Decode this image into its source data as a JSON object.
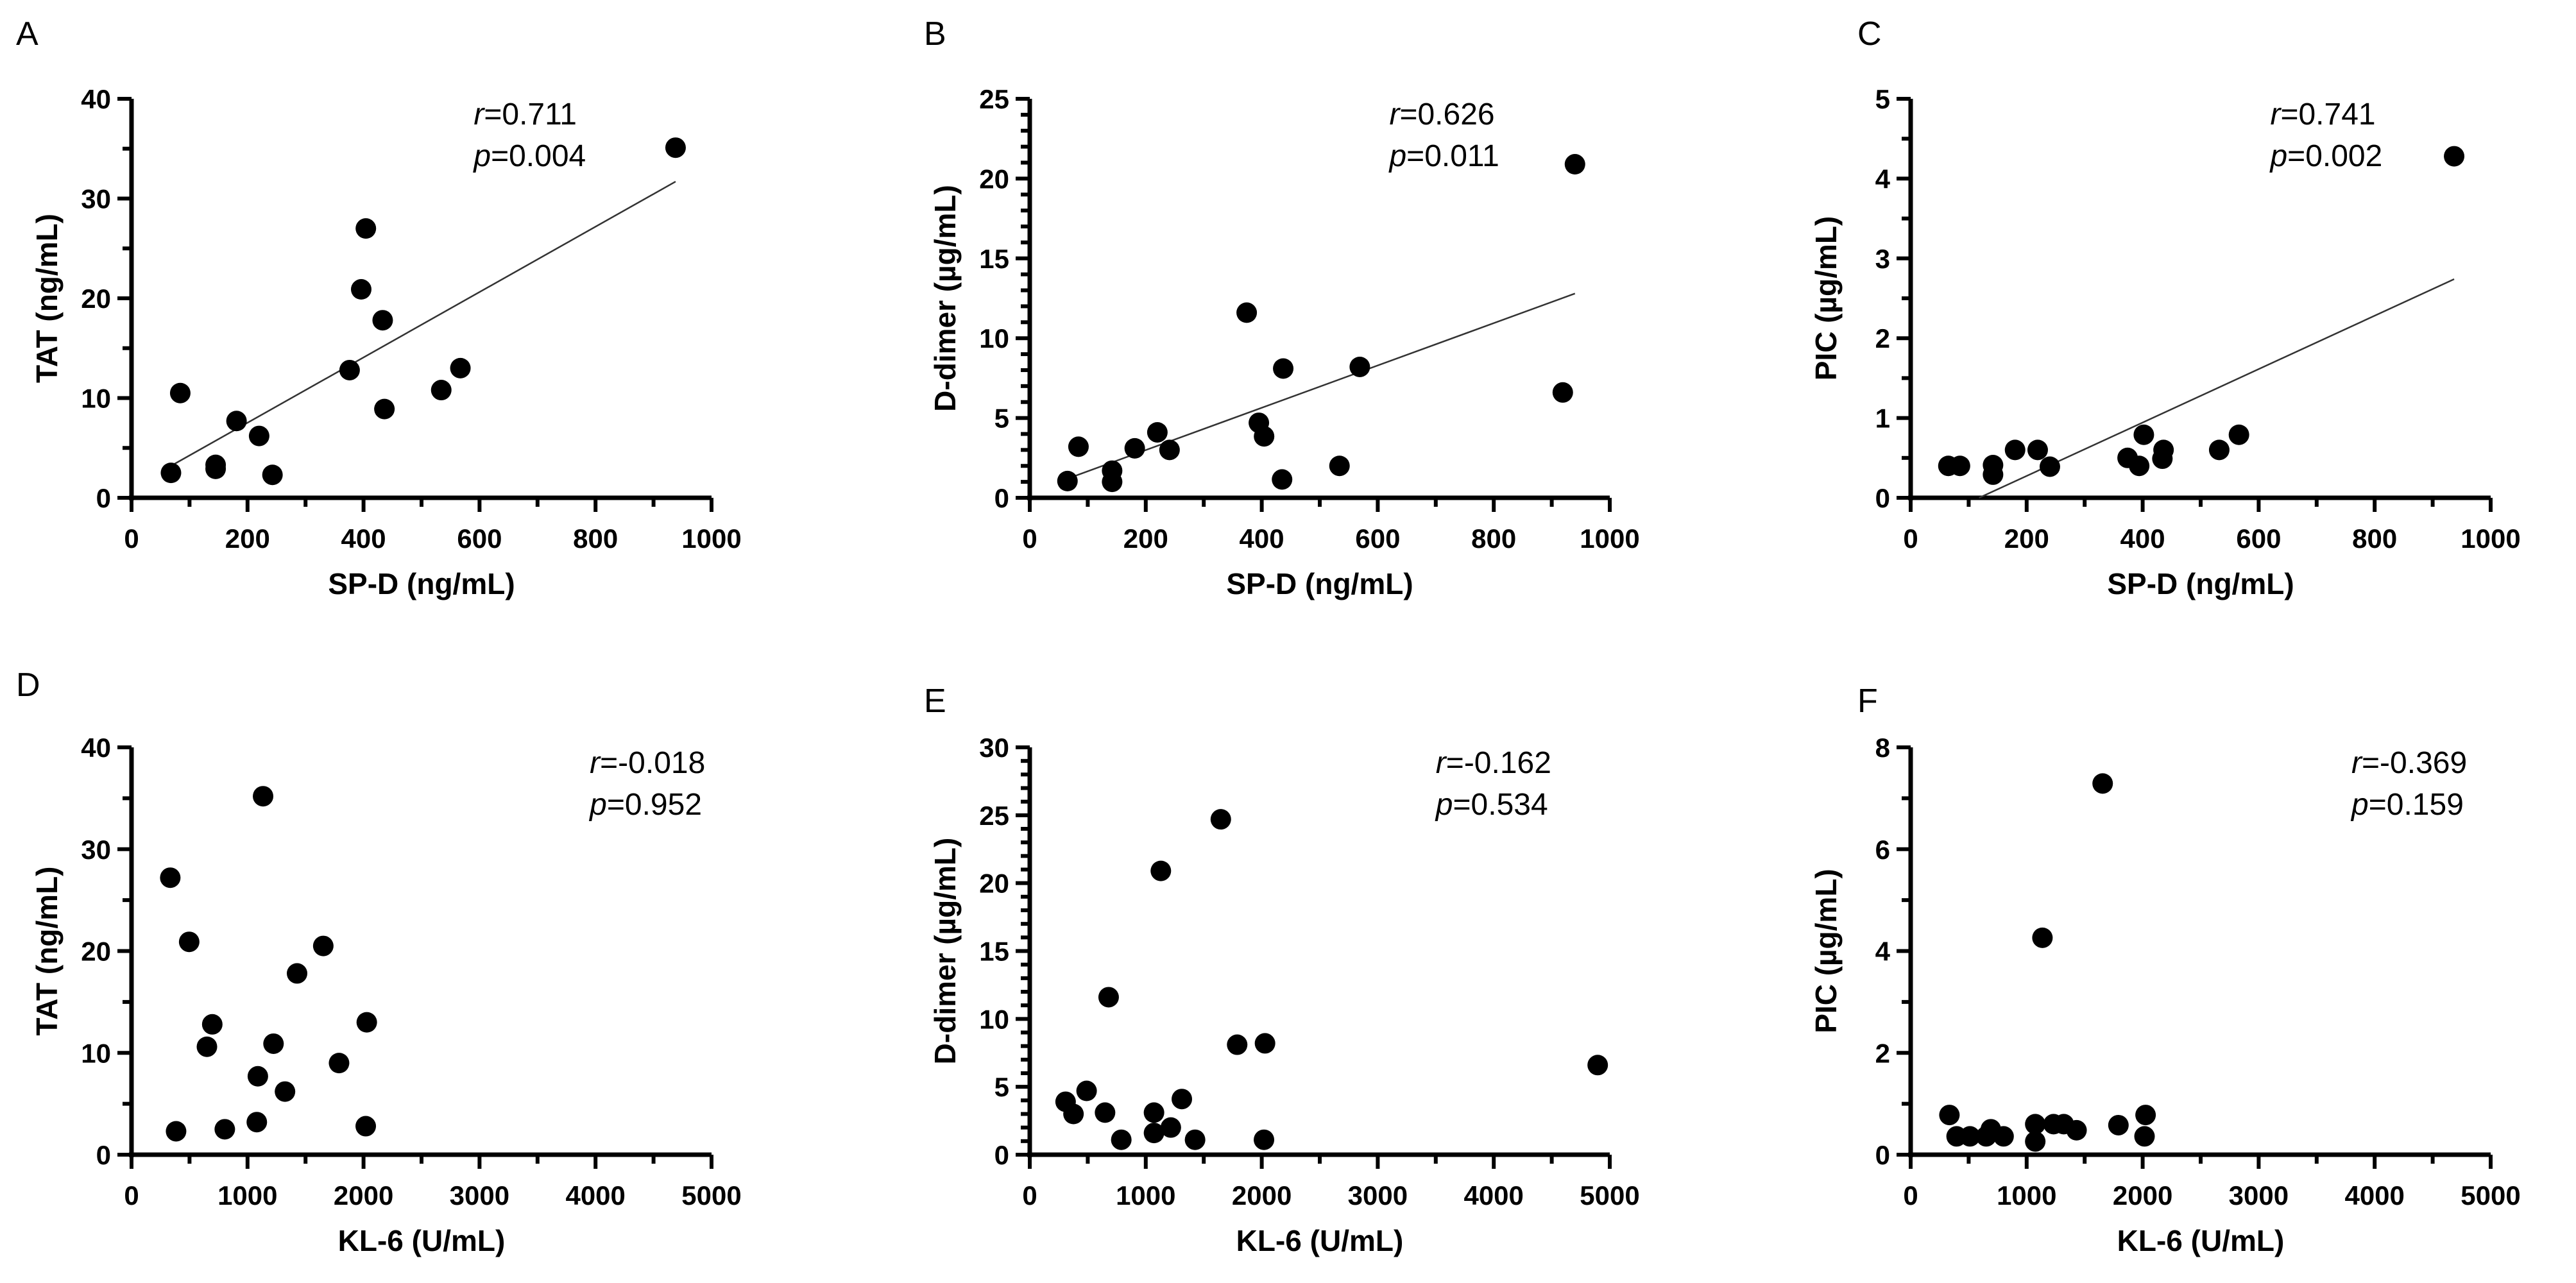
{
  "chart_data": [
    {
      "panel": "A",
      "type": "scatter",
      "xlabel": "SP-D (ng/mL)",
      "ylabel": "TAT (ng/mL)",
      "xlim": [
        0,
        1000
      ],
      "ylim": [
        0,
        40
      ],
      "xticks": [
        0,
        200,
        400,
        600,
        800,
        1000
      ],
      "yticks": [
        0,
        10,
        20,
        30,
        40
      ],
      "annotation": {
        "r_label": "r",
        "r_value": "=0.711",
        "p_label": "p",
        "p_value": "=0.004"
      },
      "points": [
        [
          68,
          2.5
        ],
        [
          84,
          10.5
        ],
        [
          145,
          3.3
        ],
        [
          145,
          2.9
        ],
        [
          181,
          7.7
        ],
        [
          220,
          6.2
        ],
        [
          243,
          2.3
        ],
        [
          376,
          12.8
        ],
        [
          396,
          20.9
        ],
        [
          404,
          27.0
        ],
        [
          433,
          17.8
        ],
        [
          436,
          8.9
        ],
        [
          534,
          10.8
        ],
        [
          567,
          13.0
        ],
        [
          938,
          35.1
        ]
      ],
      "fit_line": [
        [
          68,
          3.2
        ],
        [
          938,
          31.7
        ]
      ]
    },
    {
      "panel": "B",
      "type": "scatter",
      "xlabel": "SP-D (ng/mL)",
      "ylabel": "D-dimer (µg/mL)",
      "xlim": [
        0,
        1000
      ],
      "ylim": [
        0,
        25
      ],
      "xticks": [
        0,
        200,
        400,
        600,
        800,
        1000
      ],
      "yticks": [
        0,
        5,
        10,
        15,
        20,
        25
      ],
      "annotation": {
        "r_label": "r",
        "r_value": "=0.626",
        "p_label": "p",
        "p_value": "=0.011"
      },
      "points": [
        [
          65,
          1.05
        ],
        [
          84,
          3.2
        ],
        [
          142,
          1.7
        ],
        [
          142,
          1.0
        ],
        [
          181,
          3.1
        ],
        [
          220,
          4.1
        ],
        [
          241,
          3.0
        ],
        [
          374,
          11.6
        ],
        [
          395,
          4.7
        ],
        [
          404,
          3.85
        ],
        [
          435,
          1.15
        ],
        [
          437,
          8.1
        ],
        [
          534,
          2.0
        ],
        [
          569,
          8.2
        ],
        [
          919,
          6.6
        ],
        [
          940,
          20.9
        ]
      ],
      "fit_line": [
        [
          65,
          1.2
        ],
        [
          940,
          12.8
        ]
      ]
    },
    {
      "panel": "C",
      "type": "scatter",
      "xlabel": "SP-D (ng/mL)",
      "ylabel": "PIC (µg/mL)",
      "xlim": [
        0,
        1000
      ],
      "ylim": [
        0,
        5
      ],
      "xticks": [
        0,
        200,
        400,
        600,
        800,
        1000
      ],
      "yticks": [
        0,
        1,
        2,
        3,
        4,
        5
      ],
      "annotation": {
        "r_label": "r",
        "r_value": "=0.741",
        "p_label": "p",
        "p_value": "=0.002"
      },
      "points": [
        [
          65,
          0.4
        ],
        [
          85,
          0.4
        ],
        [
          142,
          0.41
        ],
        [
          142,
          0.29
        ],
        [
          180,
          0.6
        ],
        [
          219,
          0.6
        ],
        [
          240,
          0.39
        ],
        [
          374,
          0.5
        ],
        [
          394,
          0.4
        ],
        [
          402,
          0.79
        ],
        [
          434,
          0.49
        ],
        [
          436,
          0.6
        ],
        [
          532,
          0.6
        ],
        [
          566,
          0.79
        ],
        [
          937,
          4.28
        ]
      ],
      "fit_line": [
        [
          118,
          0
        ],
        [
          937,
          2.74
        ]
      ]
    },
    {
      "panel": "D",
      "type": "scatter",
      "xlabel": "KL-6 (U/mL)",
      "ylabel": "TAT (ng/mL)",
      "xlim": [
        0,
        5000
      ],
      "ylim": [
        0,
        40
      ],
      "xticks": [
        0,
        1000,
        2000,
        3000,
        4000,
        5000
      ],
      "yticks": [
        0,
        10,
        20,
        30,
        40
      ],
      "annotation": {
        "r_label": "r",
        "r_value": "=-0.018",
        "p_label": "p",
        "p_value": "=0.952"
      },
      "points": [
        [
          334,
          27.2
        ],
        [
          384,
          2.3
        ],
        [
          497,
          20.9
        ],
        [
          650,
          10.6
        ],
        [
          696,
          12.8
        ],
        [
          804,
          2.5
        ],
        [
          1080,
          3.2
        ],
        [
          1089,
          7.7
        ],
        [
          1134,
          35.2
        ],
        [
          1224,
          10.9
        ],
        [
          1323,
          6.2
        ],
        [
          1427,
          17.8
        ],
        [
          1653,
          20.5
        ],
        [
          1789,
          9.0
        ],
        [
          2019,
          2.8
        ],
        [
          2028,
          13.0
        ]
      ]
    },
    {
      "panel": "E",
      "type": "scatter",
      "xlabel": "KL-6 (U/mL)",
      "ylabel": "D-dimer (µg/mL)",
      "xlim": [
        0,
        5000
      ],
      "ylim": [
        0,
        30
      ],
      "xticks": [
        0,
        1000,
        2000,
        3000,
        4000,
        5000
      ],
      "yticks": [
        0,
        5,
        10,
        15,
        20,
        25,
        30
      ],
      "annotation": {
        "r_label": "r",
        "r_value": "=-0.162",
        "p_label": "p",
        "p_value": "=0.534"
      },
      "points": [
        [
          309,
          3.9
        ],
        [
          377,
          3.0
        ],
        [
          490,
          4.7
        ],
        [
          649,
          3.1
        ],
        [
          680,
          11.6
        ],
        [
          789,
          1.1
        ],
        [
          1071,
          3.1
        ],
        [
          1071,
          1.6
        ],
        [
          1130,
          20.9
        ],
        [
          1216,
          2.0
        ],
        [
          1311,
          4.1
        ],
        [
          1425,
          1.1
        ],
        [
          1647,
          24.7
        ],
        [
          1788,
          8.1
        ],
        [
          2028,
          8.2
        ],
        [
          2019,
          1.1
        ],
        [
          4896,
          6.6
        ]
      ]
    },
    {
      "panel": "F",
      "type": "scatter",
      "xlabel": "KL-6 (U/mL)",
      "ylabel": "PIC (µg/mL)",
      "xlim": [
        0,
        5000
      ],
      "ylim": [
        0,
        8
      ],
      "xticks": [
        0,
        1000,
        2000,
        3000,
        4000,
        5000
      ],
      "yticks": [
        0,
        2,
        4,
        6,
        8
      ],
      "annotation": {
        "r_label": "r",
        "r_value": "=-0.369",
        "p_label": "p",
        "p_value": "=0.159"
      },
      "points": [
        [
          334,
          0.78
        ],
        [
          396,
          0.36
        ],
        [
          511,
          0.36
        ],
        [
          651,
          0.36
        ],
        [
          691,
          0.5
        ],
        [
          801,
          0.36
        ],
        [
          1074,
          0.6
        ],
        [
          1074,
          0.26
        ],
        [
          1136,
          4.26
        ],
        [
          1232,
          0.6
        ],
        [
          1320,
          0.6
        ],
        [
          1430,
          0.48
        ],
        [
          1655,
          7.29
        ],
        [
          1791,
          0.58
        ],
        [
          2025,
          0.78
        ],
        [
          2016,
          0.36
        ]
      ]
    }
  ]
}
